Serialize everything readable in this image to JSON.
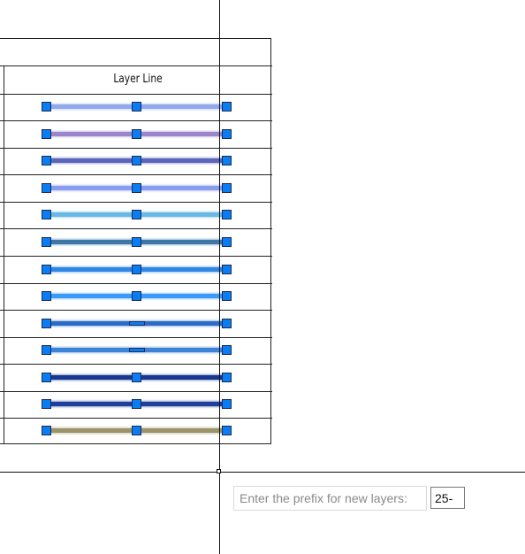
{
  "table": {
    "header": "Layer Line",
    "rows": [
      {
        "color": "#8fa8ee",
        "glow": "#c7d3f7"
      },
      {
        "color": "#9a86c8",
        "glow": "#cfc3e6"
      },
      {
        "color": "#5c66b8",
        "glow": "#a9afe0"
      },
      {
        "color": "#8a9cf0",
        "glow": "#c3cdf7"
      },
      {
        "color": "#6ab9e4",
        "glow": "#b3dcf2"
      },
      {
        "color": "#3d77a8",
        "glow": "#9fbbd4"
      },
      {
        "color": "#2f86e4",
        "glow": "#97c2f1"
      },
      {
        "color": "#3a9af5",
        "glow": "#9dccfa"
      },
      {
        "color": "#2b6cc4",
        "glow": "#95b5e1"
      },
      {
        "color": "#3d84d8",
        "glow": "#9ec1eb"
      },
      {
        "color": "#16388e",
        "glow": "#8a9bc6"
      },
      {
        "color": "#1f3f9c",
        "glow": "#8f9fcd"
      },
      {
        "color": "#9a9468",
        "glow": "#cdc9b3"
      }
    ]
  },
  "prompt": {
    "label": "Enter the prefix for new layers:",
    "value": "25-"
  },
  "grip_color": "#0a7df5"
}
